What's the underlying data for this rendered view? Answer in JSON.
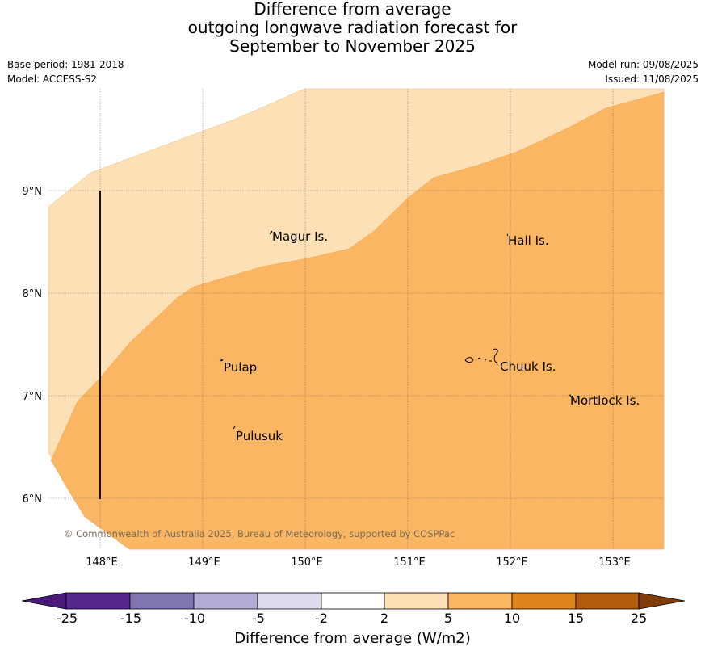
{
  "title_lines": [
    "Difference from average",
    "outgoing longwave radiation forecast for",
    "September to November 2025"
  ],
  "meta": {
    "base_period": "Base period: 1981-2018",
    "model": "Model: ACCESS-S2",
    "model_run": "Model run: 09/08/2025",
    "issued": "Issued: 11/08/2025"
  },
  "map": {
    "lon_labels": [
      "148°E",
      "149°E",
      "150°E",
      "151°E",
      "152°E",
      "153°E"
    ],
    "lat_labels": [
      "9°N",
      "8°N",
      "7°N",
      "6°N"
    ],
    "places": [
      {
        "name": "Magur Is."
      },
      {
        "name": "Hall Is."
      },
      {
        "name": "Pulap"
      },
      {
        "name": "Chuuk Is."
      },
      {
        "name": "Mortlock Is."
      },
      {
        "name": "Pulusuk"
      }
    ],
    "copyright": "© Commonwealth of Australia 2025, Bureau of Meteorology, supported by COSPPac",
    "category_colors": {
      "2 to 5": "#fde0b5",
      "5 to 10": "#fab662"
    }
  },
  "colorbar": {
    "labels": [
      "-25",
      "-15",
      "-10",
      "-5",
      "-2",
      "2",
      "5",
      "10",
      "15",
      "25"
    ],
    "colors": [
      "#4a1a7a",
      "#56288e",
      "#8074b1",
      "#b2acd6",
      "#dcdcee",
      "#ffffff",
      "#fde0b5",
      "#fab662",
      "#e0841c",
      "#b25a0e",
      "#7f3b08"
    ],
    "title": "Difference from average (W/m2)"
  }
}
